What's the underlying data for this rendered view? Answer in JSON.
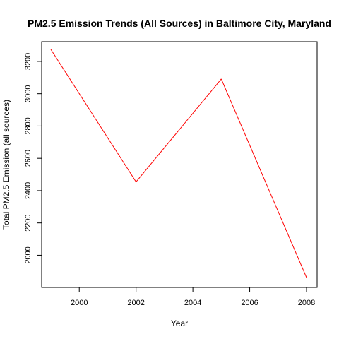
{
  "chart_data": {
    "type": "line",
    "title": "PM2.5 Emission Trends (All Sources) in Baltimore City, Maryland",
    "xlabel": "Year",
    "ylabel": "Total PM2.5 Emission (all sources)",
    "x": [
      1999,
      2002,
      2005,
      2008
    ],
    "series": [
      {
        "values": [
          3274,
          2454,
          3091,
          1862
        ],
        "color": "#ff0000"
      }
    ],
    "xlim": [
      1999,
      2008
    ],
    "ylim": [
      1862,
      3274
    ],
    "x_ticks": [
      "2000",
      "2002",
      "2004",
      "2006",
      "2008"
    ],
    "y_ticks": [
      "2000",
      "2200",
      "2400",
      "2600",
      "2800",
      "3000",
      "3200"
    ],
    "grid": false,
    "legend": "none"
  }
}
